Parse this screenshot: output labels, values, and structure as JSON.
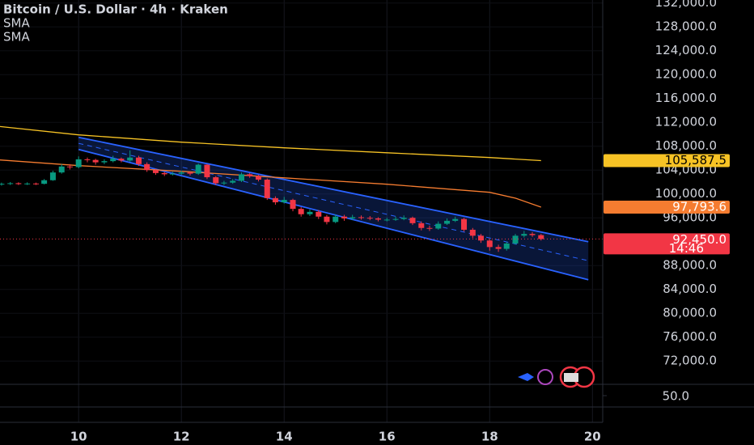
{
  "chart_data": {
    "type": "candlestick",
    "title": "Bitcoin / U.S. Dollar · 4h · Kraken",
    "up_color": "#089981",
    "down_color": "#f23645",
    "xlim": [
      8.47,
      20.2
    ],
    "xticks": [
      10,
      12,
      14,
      16,
      18,
      20
    ],
    "ylim": [
      68100,
      132500
    ],
    "yticks": [
      {
        "value": 132000,
        "label": "132,000.0"
      },
      {
        "value": 128000,
        "label": "128,000.0"
      },
      {
        "value": 124000,
        "label": "124,000.0"
      },
      {
        "value": 120000,
        "label": "120,000.0"
      },
      {
        "value": 116000,
        "label": "116,000.0"
      },
      {
        "value": 112000,
        "label": "112,000.0"
      },
      {
        "value": 108000,
        "label": "108,000.0"
      },
      {
        "value": 104000,
        "label": "104,000.0"
      },
      {
        "value": 100000,
        "label": "100,000.0"
      },
      {
        "value": 96000,
        "label": "96,000.0"
      },
      {
        "value": 88000,
        "label": "88,000.0"
      },
      {
        "value": 84000,
        "label": "84,000.0"
      },
      {
        "value": 80000,
        "label": "80,000.0"
      },
      {
        "value": 76000,
        "label": "76,000.0"
      },
      {
        "value": 72000,
        "label": "72,000.0"
      }
    ],
    "grid": true,
    "candles": {
      "x": [
        8.5,
        8.67,
        8.83,
        9,
        9.17,
        9.33,
        9.5,
        9.67,
        9.83,
        10,
        10.17,
        10.33,
        10.5,
        10.67,
        10.83,
        11,
        11.17,
        11.33,
        11.5,
        11.67,
        11.83,
        12,
        12.17,
        12.33,
        12.5,
        12.67,
        12.83,
        13,
        13.17,
        13.33,
        13.5,
        13.67,
        13.83,
        14,
        14.17,
        14.33,
        14.5,
        14.67,
        14.83,
        15,
        15.17,
        15.33,
        15.5,
        15.67,
        15.83,
        16,
        16.17,
        16.33,
        16.5,
        16.67,
        16.83,
        17,
        17.17,
        17.33,
        17.5,
        17.67,
        17.83,
        18,
        18.17,
        18.33,
        18.5,
        18.67,
        18.83,
        19
      ],
      "open": [
        101600,
        101700,
        101800,
        101650,
        101750,
        101700,
        102300,
        103600,
        104600,
        104500,
        105800,
        105700,
        105300,
        105500,
        105900,
        105600,
        106100,
        105000,
        104000,
        103500,
        103300,
        103400,
        103600,
        103400,
        104900,
        102800,
        101800,
        101900,
        102200,
        103300,
        103000,
        102400,
        99300,
        98600,
        99000,
        97500,
        96600,
        97000,
        96200,
        95300,
        96200,
        95900,
        96100,
        96000,
        95900,
        95700,
        95700,
        95800,
        96000,
        95100,
        94300,
        94200,
        95000,
        95500,
        95800,
        94000,
        93000,
        92200,
        91100,
        90800,
        91700,
        93000,
        93300,
        93100
      ],
      "high": [
        101900,
        102000,
        101950,
        101950,
        101900,
        102500,
        103900,
        105000,
        105000,
        106300,
        106100,
        105900,
        105800,
        106400,
        106100,
        107300,
        106400,
        105300,
        104200,
        103700,
        103700,
        103900,
        103800,
        105100,
        105000,
        103000,
        102200,
        102500,
        103600,
        103500,
        103200,
        102600,
        99600,
        99500,
        99200,
        97800,
        97400,
        97300,
        96500,
        96600,
        96500,
        96500,
        96400,
        96300,
        96100,
        96000,
        96200,
        96400,
        96200,
        95400,
        94700,
        95400,
        95900,
        96200,
        96000,
        94300,
        93300,
        92400,
        91500,
        92000,
        93300,
        93800,
        93600,
        93300
      ],
      "low": [
        101400,
        101500,
        101500,
        101500,
        101500,
        101600,
        102200,
        103400,
        104100,
        104300,
        105300,
        104900,
        105000,
        105300,
        105300,
        105400,
        104700,
        103700,
        103200,
        103000,
        103100,
        103200,
        103100,
        103200,
        102500,
        101500,
        101500,
        101700,
        102000,
        102700,
        102100,
        99000,
        98200,
        98400,
        97100,
        96200,
        96300,
        95800,
        94900,
        95100,
        95500,
        95600,
        95700,
        95600,
        95400,
        95400,
        95500,
        95600,
        94800,
        93900,
        93800,
        94000,
        94800,
        95300,
        93700,
        92600,
        91800,
        90500,
        90300,
        90500,
        91500,
        92700,
        92800,
        92200
      ],
      "close": [
        101700,
        101800,
        101650,
        101750,
        101700,
        102300,
        103600,
        104600,
        104500,
        105800,
        105700,
        105300,
        105500,
        105900,
        105600,
        106100,
        105000,
        104000,
        103500,
        103300,
        103400,
        103600,
        103400,
        104900,
        102800,
        101800,
        101900,
        102200,
        103300,
        103000,
        102400,
        99300,
        98600,
        99000,
        97500,
        96600,
        97000,
        96200,
        95300,
        96200,
        95900,
        96100,
        96000,
        95900,
        95700,
        95700,
        95800,
        96000,
        95100,
        94300,
        94200,
        95000,
        95500,
        95800,
        94000,
        93000,
        92200,
        91100,
        90800,
        91700,
        93000,
        93300,
        93100,
        92450
      ]
    },
    "series": [
      {
        "name": "SMA",
        "color": "#f7c325",
        "x": [
          8.47,
          10,
          12,
          14,
          16,
          18,
          19
        ],
        "values": [
          111300,
          109900,
          108680,
          107730,
          106900,
          106100,
          105587.5
        ]
      },
      {
        "name": "SMA",
        "color": "#f57c30",
        "x": [
          8.47,
          10,
          12,
          14,
          16,
          18,
          18.5,
          19
        ],
        "values": [
          105700,
          104750,
          103800,
          102700,
          101630,
          100270,
          99300,
          97793.6
        ]
      }
    ],
    "channel": {
      "color": "#2962ff",
      "x": [
        10,
        19.92
      ],
      "upper": [
        109492,
        92000
      ],
      "lower": [
        107458,
        85627
      ]
    },
    "price_tags": [
      {
        "value": 105587.5,
        "label": "105,587.5",
        "color": "#f7c325"
      },
      {
        "value": 97793.6,
        "label": "97,793.6",
        "color": "#f57c30"
      },
      {
        "value": 92450,
        "label": "92,450.0",
        "sublabel": "14:46",
        "color": "#f23645"
      }
    ],
    "indicator": {
      "ylim": [
        0,
        100
      ],
      "yticks": [
        {
          "value": 50,
          "label": "50.0"
        }
      ]
    }
  }
}
